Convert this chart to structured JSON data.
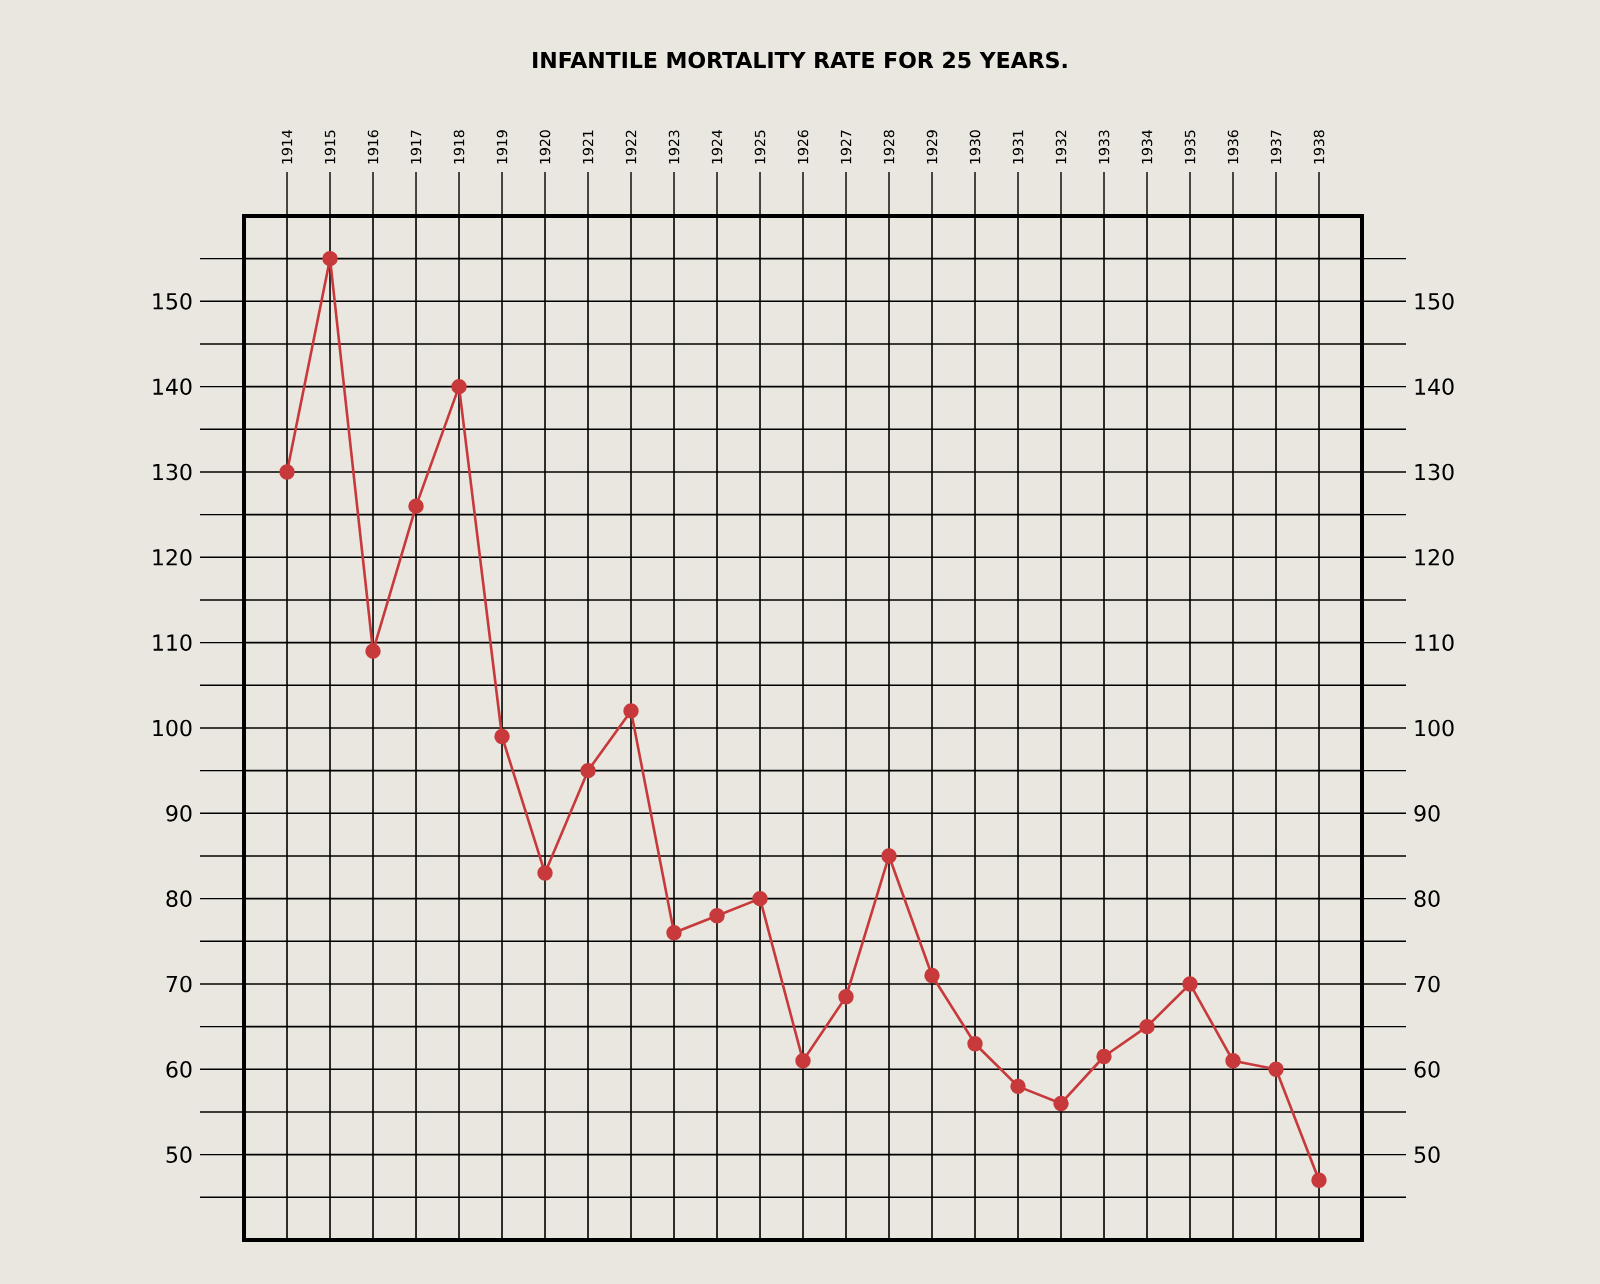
{
  "chart_data": {
    "type": "line",
    "title": "INFANTILE MORTALITY RATE FOR 25 YEARS.",
    "x": [
      1914,
      1915,
      1916,
      1917,
      1918,
      1919,
      1920,
      1921,
      1922,
      1923,
      1924,
      1925,
      1926,
      1927,
      1928,
      1929,
      1930,
      1931,
      1932,
      1933,
      1934,
      1935,
      1936,
      1937,
      1938
    ],
    "series": [
      {
        "color": "#c8393b",
        "values": [
          130,
          155,
          109,
          126,
          140,
          99,
          83,
          95,
          102,
          76,
          78,
          80,
          61,
          68.5,
          85,
          71,
          63,
          58,
          56,
          61.5,
          65,
          70,
          61,
          60,
          47
        ]
      }
    ],
    "xlim": [
      1913,
      1939
    ],
    "xticks": [
      1914,
      1915,
      1916,
      1917,
      1918,
      1919,
      1920,
      1921,
      1922,
      1923,
      1924,
      1925,
      1926,
      1927,
      1928,
      1929,
      1930,
      1931,
      1932,
      1933,
      1934,
      1935,
      1936,
      1937,
      1938
    ],
    "ylim": [
      40,
      160
    ],
    "yticks": [
      {
        "value": 45,
        "label": null
      },
      50,
      {
        "value": 55,
        "label": null
      },
      60,
      {
        "value": 65,
        "label": null
      },
      70,
      {
        "value": 75,
        "label": null
      },
      80,
      {
        "value": 85,
        "label": null
      },
      90,
      {
        "value": 95,
        "label": null
      },
      100,
      {
        "value": 105,
        "label": null
      },
      110,
      {
        "value": 115,
        "label": null
      },
      120,
      {
        "value": 125,
        "label": null
      },
      130,
      {
        "value": 135,
        "label": null
      },
      140,
      {
        "value": 145,
        "label": null
      },
      150,
      {
        "value": 155,
        "label": null
      }
    ],
    "y2lim": [
      40,
      160
    ],
    "y2ticks": [
      {
        "value": 45,
        "label": null
      },
      50,
      {
        "value": 55,
        "label": null
      },
      60,
      {
        "value": 65,
        "label": null
      },
      70,
      {
        "value": 75,
        "label": null
      },
      80,
      {
        "value": 85,
        "label": null
      },
      90,
      {
        "value": 95,
        "label": null
      },
      100,
      {
        "value": 105,
        "label": null
      },
      110,
      {
        "value": 115,
        "label": null
      },
      120,
      {
        "value": 125,
        "label": null
      },
      130,
      {
        "value": 135,
        "label": null
      },
      140,
      {
        "value": 145,
        "label": null
      },
      150,
      {
        "value": 155,
        "label": null
      }
    ],
    "grid": true,
    "marker": "circle",
    "line_style": "solid"
  }
}
